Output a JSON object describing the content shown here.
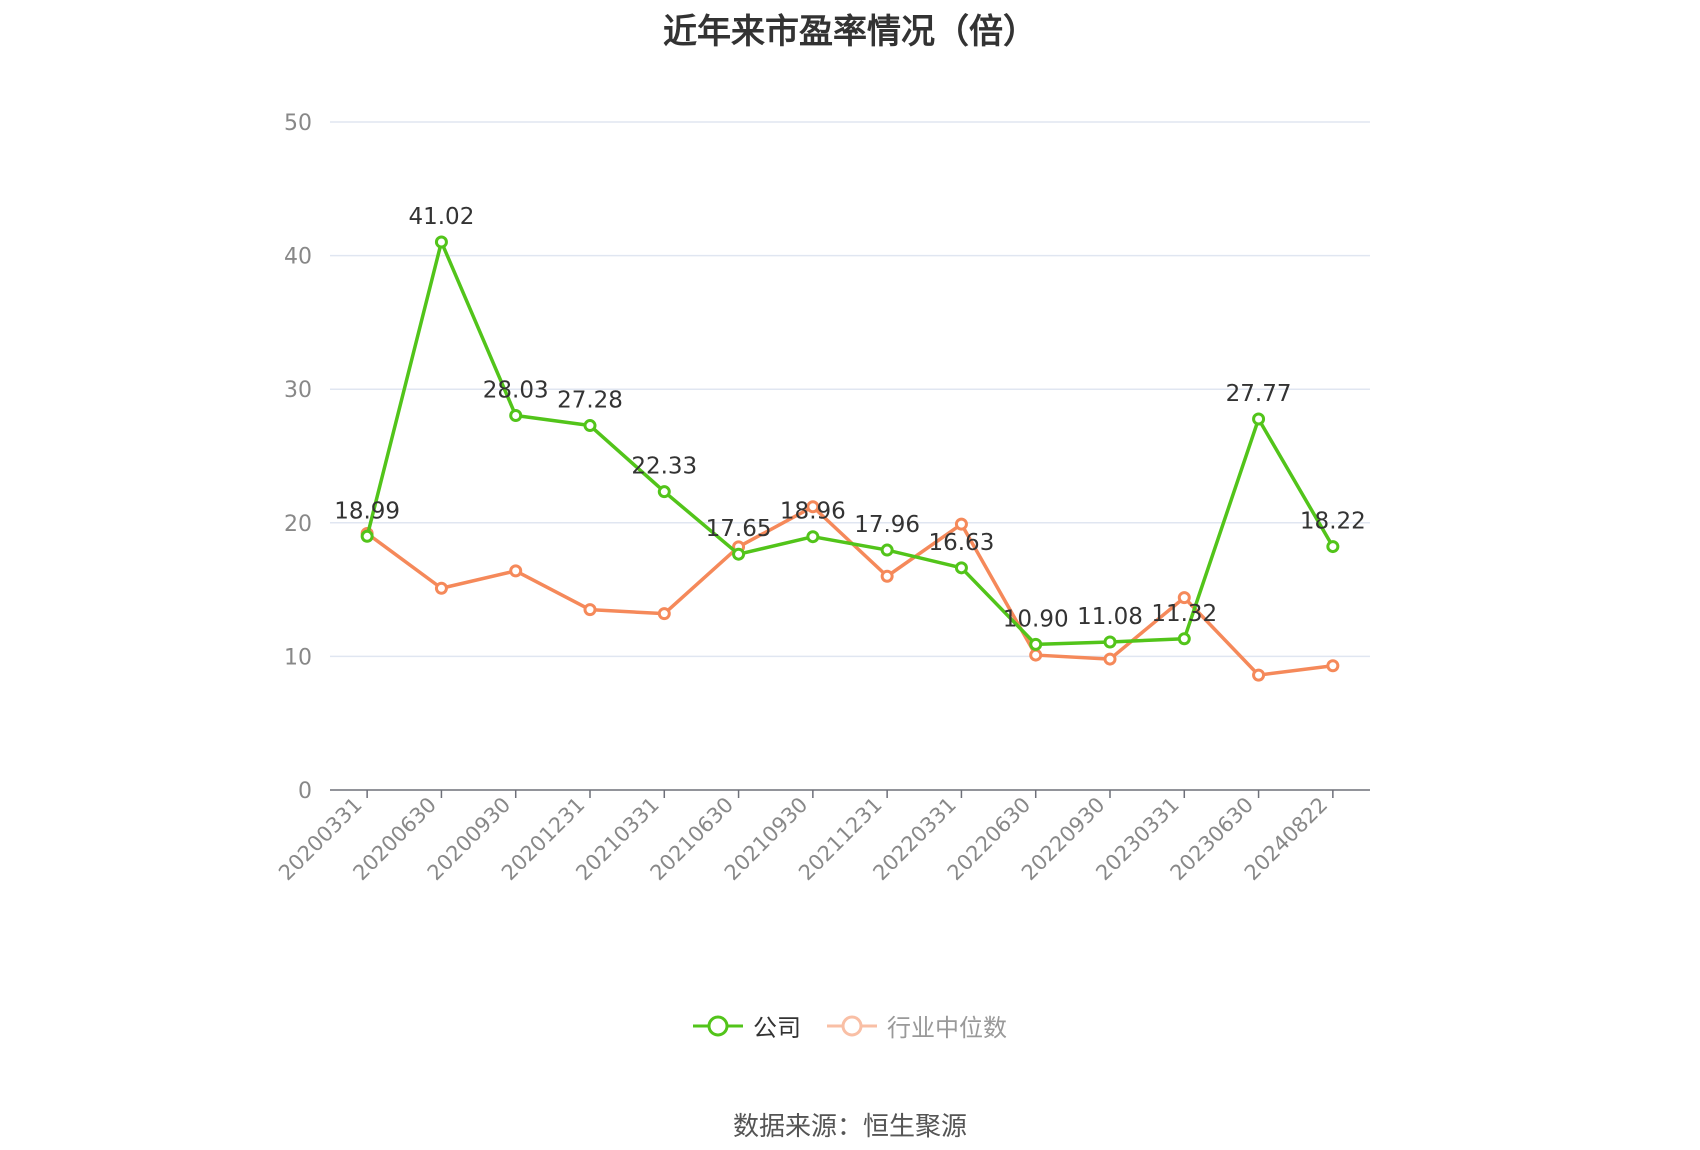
{
  "title": "近年来市盈率情况（倍）",
  "source": "数据来源：恒生聚源",
  "chart_data": {
    "type": "line",
    "categories": [
      "20200331",
      "20200630",
      "20200930",
      "20201231",
      "20210331",
      "20210630",
      "20210930",
      "20211231",
      "20220331",
      "20220630",
      "20220930",
      "20230331",
      "20230630",
      "20240822"
    ],
    "ylim": [
      0,
      50
    ],
    "yticks": [
      0,
      10,
      20,
      30,
      40,
      50
    ],
    "grid": true,
    "legend_position": "bottom",
    "series": [
      {
        "name": "公司",
        "color": "#52c41a",
        "show_labels": true,
        "values": [
          18.99,
          41.02,
          28.03,
          27.28,
          22.33,
          17.65,
          18.96,
          17.96,
          16.63,
          10.9,
          11.08,
          11.32,
          27.77,
          18.22
        ]
      },
      {
        "name": "行业中位数",
        "color": "#f5895a",
        "show_labels": false,
        "values": [
          19.2,
          15.1,
          16.4,
          13.5,
          13.2,
          18.2,
          21.2,
          16.0,
          19.9,
          10.1,
          9.8,
          14.4,
          8.6,
          9.3
        ]
      }
    ],
    "labels": [
      "18.99",
      "41.02",
      "28.03",
      "27.28",
      "22.33",
      "17.65",
      "18.96",
      "17.96",
      "16.63",
      "10.90",
      "11.08",
      "11.32",
      "27.77",
      "18.22"
    ]
  }
}
